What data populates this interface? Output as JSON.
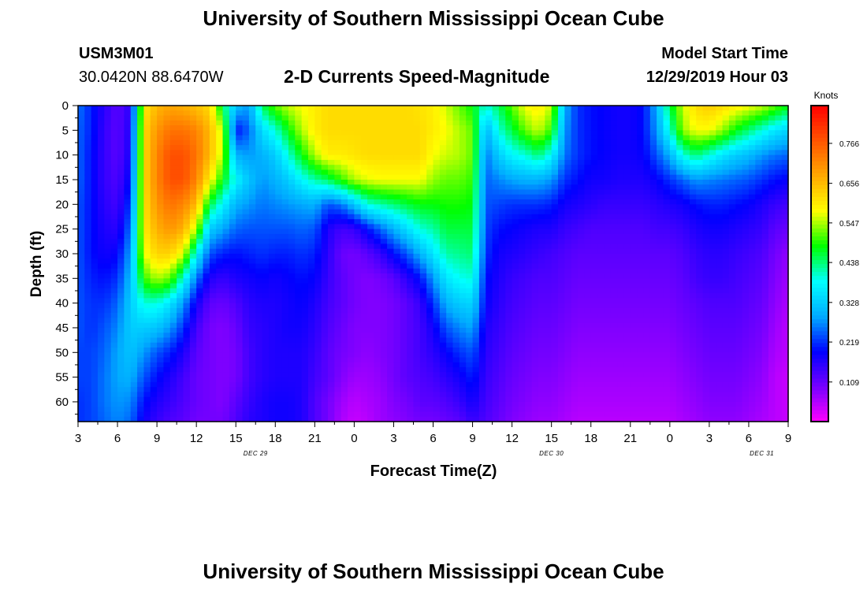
{
  "header": {
    "title": "University of Southern Mississippi Ocean Cube",
    "station_id": "USM3M01",
    "coordinates": "30.0420N 88.6470W",
    "subtitle": "2-D Currents Speed-Magnitude",
    "model_start_label": "Model Start Time",
    "model_start_value": "12/29/2019 Hour 03"
  },
  "footer": {
    "title": "University of Southern Mississippi Ocean Cube"
  },
  "chart_data": {
    "type": "heatmap",
    "xlabel": "Forecast Time(Z)",
    "ylabel": "Depth (ft)",
    "colorbar_label": "Knots",
    "x_tick_labels": [
      "3",
      "6",
      "9",
      "12",
      "15",
      "18",
      "21",
      "0",
      "3",
      "6",
      "9",
      "12",
      "15",
      "18",
      "21",
      "0",
      "3",
      "6",
      "9"
    ],
    "date_labels": [
      {
        "label": "DEC 29",
        "hour": 13.5
      },
      {
        "label": "DEC 30",
        "hour": 36
      },
      {
        "label": "DEC 31",
        "hour": 52
      }
    ],
    "x_hours_range": [
      0,
      54
    ],
    "depth_range": [
      0,
      64
    ],
    "y_ticks": [
      0,
      5,
      10,
      15,
      20,
      25,
      30,
      35,
      40,
      45,
      50,
      55,
      60
    ],
    "colorbar_ticks": [
      "0.109",
      "0.219",
      "0.328",
      "0.438",
      "0.547",
      "0.656",
      "0.766"
    ],
    "value_range": [
      0.0,
      0.87
    ],
    "colors": {
      "scale": [
        "#ff00ff",
        "#7700ff",
        "#0000ff",
        "#00aaff",
        "#00ffff",
        "#00ff00",
        "#ffff00",
        "#ffaa00",
        "#ff5500",
        "#ff0000"
      ]
    },
    "field_times": [
      0,
      1,
      2,
      3,
      4,
      5,
      6,
      7,
      8,
      9,
      10,
      11,
      12,
      13,
      14,
      15,
      16,
      17,
      18,
      19,
      20,
      21,
      22,
      23,
      24,
      25,
      26,
      27,
      28,
      29,
      30,
      31,
      32,
      33,
      34,
      35,
      36,
      37,
      38,
      39,
      40,
      41,
      42,
      43,
      44,
      45,
      46,
      47,
      48,
      49,
      50,
      51,
      52,
      53,
      54
    ],
    "field_depths": [
      0,
      5,
      10,
      15,
      20,
      25,
      30,
      35,
      40,
      45,
      50,
      55,
      60,
      64
    ],
    "speed_knots_by_time": [
      [
        0.26,
        0.25,
        0.25,
        0.25,
        0.24,
        0.24,
        0.24,
        0.24,
        0.24,
        0.24,
        0.23,
        0.23,
        0.22,
        0.22
      ],
      [
        0.21,
        0.21,
        0.2,
        0.2,
        0.2,
        0.2,
        0.2,
        0.21,
        0.22,
        0.22,
        0.23,
        0.23,
        0.23,
        0.23
      ],
      [
        0.16,
        0.15,
        0.15,
        0.15,
        0.16,
        0.17,
        0.18,
        0.2,
        0.22,
        0.24,
        0.25,
        0.26,
        0.26,
        0.25
      ],
      [
        0.12,
        0.12,
        0.12,
        0.13,
        0.14,
        0.16,
        0.19,
        0.22,
        0.25,
        0.27,
        0.29,
        0.29,
        0.28,
        0.27
      ],
      [
        0.16,
        0.17,
        0.18,
        0.2,
        0.23,
        0.26,
        0.29,
        0.31,
        0.33,
        0.33,
        0.32,
        0.3,
        0.27,
        0.25
      ],
      [
        0.6,
        0.62,
        0.62,
        0.62,
        0.61,
        0.6,
        0.57,
        0.5,
        0.4,
        0.33,
        0.28,
        0.24,
        0.2,
        0.18
      ],
      [
        0.66,
        0.7,
        0.72,
        0.72,
        0.7,
        0.67,
        0.63,
        0.55,
        0.4,
        0.32,
        0.24,
        0.2,
        0.17,
        0.15
      ],
      [
        0.68,
        0.74,
        0.78,
        0.78,
        0.74,
        0.7,
        0.63,
        0.52,
        0.36,
        0.28,
        0.21,
        0.17,
        0.15,
        0.13
      ],
      [
        0.67,
        0.74,
        0.78,
        0.78,
        0.72,
        0.67,
        0.57,
        0.4,
        0.28,
        0.22,
        0.17,
        0.14,
        0.13,
        0.12
      ],
      [
        0.65,
        0.72,
        0.74,
        0.72,
        0.66,
        0.55,
        0.38,
        0.26,
        0.18,
        0.14,
        0.12,
        0.11,
        0.11,
        0.1
      ],
      [
        0.62,
        0.66,
        0.66,
        0.6,
        0.46,
        0.33,
        0.24,
        0.17,
        0.12,
        0.1,
        0.1,
        0.1,
        0.1,
        0.1
      ],
      [
        0.45,
        0.55,
        0.55,
        0.48,
        0.38,
        0.29,
        0.21,
        0.15,
        0.11,
        0.09,
        0.09,
        0.09,
        0.09,
        0.1
      ],
      [
        0.32,
        0.2,
        0.3,
        0.38,
        0.3,
        0.25,
        0.2,
        0.17,
        0.13,
        0.11,
        0.1,
        0.1,
        0.12,
        0.13
      ],
      [
        0.28,
        0.25,
        0.28,
        0.32,
        0.28,
        0.24,
        0.21,
        0.18,
        0.16,
        0.15,
        0.14,
        0.14,
        0.15,
        0.16
      ],
      [
        0.45,
        0.35,
        0.3,
        0.28,
        0.26,
        0.24,
        0.22,
        0.19,
        0.17,
        0.16,
        0.16,
        0.16,
        0.17,
        0.17
      ],
      [
        0.52,
        0.4,
        0.33,
        0.3,
        0.27,
        0.24,
        0.21,
        0.18,
        0.17,
        0.17,
        0.17,
        0.17,
        0.18,
        0.18
      ],
      [
        0.56,
        0.48,
        0.4,
        0.33,
        0.28,
        0.24,
        0.21,
        0.19,
        0.18,
        0.18,
        0.17,
        0.17,
        0.18,
        0.18
      ],
      [
        0.58,
        0.55,
        0.48,
        0.38,
        0.29,
        0.25,
        0.22,
        0.2,
        0.19,
        0.18,
        0.17,
        0.17,
        0.17,
        0.17
      ],
      [
        0.6,
        0.6,
        0.55,
        0.42,
        0.3,
        0.24,
        0.21,
        0.19,
        0.17,
        0.16,
        0.15,
        0.14,
        0.13,
        0.13
      ],
      [
        0.62,
        0.62,
        0.6,
        0.45,
        0.24,
        0.17,
        0.16,
        0.15,
        0.14,
        0.13,
        0.12,
        0.12,
        0.1,
        0.1
      ],
      [
        0.62,
        0.62,
        0.6,
        0.5,
        0.26,
        0.14,
        0.11,
        0.12,
        0.12,
        0.11,
        0.1,
        0.09,
        0.07,
        0.06
      ],
      [
        0.62,
        0.62,
        0.61,
        0.55,
        0.32,
        0.15,
        0.1,
        0.1,
        0.1,
        0.09,
        0.09,
        0.07,
        0.05,
        0.04
      ],
      [
        0.62,
        0.62,
        0.62,
        0.57,
        0.4,
        0.2,
        0.12,
        0.09,
        0.09,
        0.09,
        0.08,
        0.07,
        0.06,
        0.05
      ],
      [
        0.62,
        0.62,
        0.62,
        0.58,
        0.42,
        0.25,
        0.15,
        0.1,
        0.09,
        0.09,
        0.09,
        0.08,
        0.07,
        0.07
      ],
      [
        0.62,
        0.62,
        0.62,
        0.58,
        0.44,
        0.3,
        0.2,
        0.12,
        0.1,
        0.1,
        0.1,
        0.1,
        0.09,
        0.08
      ],
      [
        0.62,
        0.62,
        0.62,
        0.58,
        0.46,
        0.35,
        0.24,
        0.16,
        0.12,
        0.12,
        0.12,
        0.12,
        0.1,
        0.09
      ],
      [
        0.61,
        0.62,
        0.62,
        0.58,
        0.48,
        0.4,
        0.3,
        0.2,
        0.15,
        0.14,
        0.14,
        0.13,
        0.12,
        0.1
      ],
      [
        0.6,
        0.6,
        0.58,
        0.54,
        0.48,
        0.42,
        0.36,
        0.28,
        0.22,
        0.18,
        0.16,
        0.14,
        0.12,
        0.1
      ],
      [
        0.56,
        0.58,
        0.56,
        0.52,
        0.49,
        0.46,
        0.42,
        0.36,
        0.3,
        0.24,
        0.19,
        0.16,
        0.13,
        0.11
      ],
      [
        0.52,
        0.55,
        0.55,
        0.52,
        0.49,
        0.46,
        0.43,
        0.39,
        0.33,
        0.27,
        0.22,
        0.18,
        0.15,
        0.12
      ],
      [
        0.48,
        0.52,
        0.52,
        0.5,
        0.48,
        0.46,
        0.44,
        0.4,
        0.34,
        0.29,
        0.24,
        0.21,
        0.18,
        0.15
      ],
      [
        0.4,
        0.3,
        0.26,
        0.25,
        0.24,
        0.23,
        0.22,
        0.2,
        0.19,
        0.17,
        0.16,
        0.15,
        0.14,
        0.13
      ],
      [
        0.45,
        0.4,
        0.33,
        0.27,
        0.23,
        0.2,
        0.18,
        0.17,
        0.16,
        0.15,
        0.14,
        0.13,
        0.12,
        0.11
      ],
      [
        0.52,
        0.46,
        0.38,
        0.29,
        0.22,
        0.19,
        0.17,
        0.15,
        0.14,
        0.13,
        0.12,
        0.11,
        0.1,
        0.09
      ],
      [
        0.58,
        0.52,
        0.4,
        0.3,
        0.22,
        0.18,
        0.16,
        0.14,
        0.13,
        0.12,
        0.11,
        0.1,
        0.09,
        0.08
      ],
      [
        0.6,
        0.56,
        0.44,
        0.3,
        0.22,
        0.17,
        0.15,
        0.13,
        0.12,
        0.11,
        0.1,
        0.09,
        0.08,
        0.07
      ],
      [
        0.56,
        0.5,
        0.38,
        0.28,
        0.21,
        0.17,
        0.14,
        0.13,
        0.12,
        0.11,
        0.1,
        0.09,
        0.08,
        0.07
      ],
      [
        0.3,
        0.28,
        0.26,
        0.22,
        0.18,
        0.15,
        0.13,
        0.12,
        0.11,
        0.1,
        0.09,
        0.08,
        0.07,
        0.06
      ],
      [
        0.22,
        0.22,
        0.22,
        0.2,
        0.17,
        0.14,
        0.12,
        0.11,
        0.1,
        0.09,
        0.08,
        0.07,
        0.06,
        0.05
      ],
      [
        0.2,
        0.2,
        0.2,
        0.18,
        0.16,
        0.13,
        0.12,
        0.11,
        0.1,
        0.09,
        0.08,
        0.07,
        0.06,
        0.05
      ],
      [
        0.19,
        0.19,
        0.19,
        0.18,
        0.15,
        0.13,
        0.12,
        0.11,
        0.1,
        0.09,
        0.08,
        0.07,
        0.06,
        0.05
      ],
      [
        0.18,
        0.18,
        0.18,
        0.17,
        0.15,
        0.13,
        0.12,
        0.11,
        0.1,
        0.09,
        0.08,
        0.07,
        0.06,
        0.05
      ],
      [
        0.18,
        0.18,
        0.18,
        0.17,
        0.15,
        0.13,
        0.12,
        0.11,
        0.1,
        0.09,
        0.08,
        0.07,
        0.06,
        0.05
      ],
      [
        0.2,
        0.2,
        0.19,
        0.17,
        0.15,
        0.13,
        0.12,
        0.11,
        0.1,
        0.09,
        0.08,
        0.07,
        0.06,
        0.05
      ],
      [
        0.3,
        0.28,
        0.24,
        0.19,
        0.16,
        0.14,
        0.12,
        0.11,
        0.1,
        0.09,
        0.08,
        0.07,
        0.06,
        0.05
      ],
      [
        0.46,
        0.4,
        0.3,
        0.22,
        0.17,
        0.14,
        0.12,
        0.11,
        0.1,
        0.09,
        0.08,
        0.07,
        0.06,
        0.05
      ],
      [
        0.56,
        0.54,
        0.4,
        0.25,
        0.18,
        0.15,
        0.13,
        0.12,
        0.11,
        0.1,
        0.09,
        0.08,
        0.07,
        0.06
      ],
      [
        0.62,
        0.58,
        0.44,
        0.28,
        0.2,
        0.17,
        0.15,
        0.14,
        0.12,
        0.11,
        0.1,
        0.09,
        0.08,
        0.07
      ],
      [
        0.64,
        0.58,
        0.4,
        0.27,
        0.21,
        0.18,
        0.16,
        0.15,
        0.13,
        0.12,
        0.11,
        0.1,
        0.09,
        0.08
      ],
      [
        0.62,
        0.54,
        0.36,
        0.26,
        0.21,
        0.18,
        0.16,
        0.15,
        0.13,
        0.12,
        0.11,
        0.1,
        0.09,
        0.08
      ],
      [
        0.6,
        0.48,
        0.33,
        0.25,
        0.2,
        0.17,
        0.15,
        0.14,
        0.13,
        0.12,
        0.11,
        0.1,
        0.09,
        0.08
      ],
      [
        0.58,
        0.44,
        0.31,
        0.24,
        0.19,
        0.16,
        0.14,
        0.13,
        0.12,
        0.11,
        0.1,
        0.09,
        0.08,
        0.07
      ],
      [
        0.56,
        0.4,
        0.28,
        0.22,
        0.17,
        0.15,
        0.13,
        0.12,
        0.11,
        0.1,
        0.09,
        0.08,
        0.07,
        0.06
      ],
      [
        0.52,
        0.36,
        0.26,
        0.2,
        0.15,
        0.12,
        0.1,
        0.09,
        0.08,
        0.07,
        0.06,
        0.05,
        0.05,
        0.05
      ],
      [
        0.48,
        0.34,
        0.25,
        0.19,
        0.14,
        0.11,
        0.08,
        0.07,
        0.06,
        0.05,
        0.05,
        0.04,
        0.04,
        0.04
      ]
    ]
  }
}
